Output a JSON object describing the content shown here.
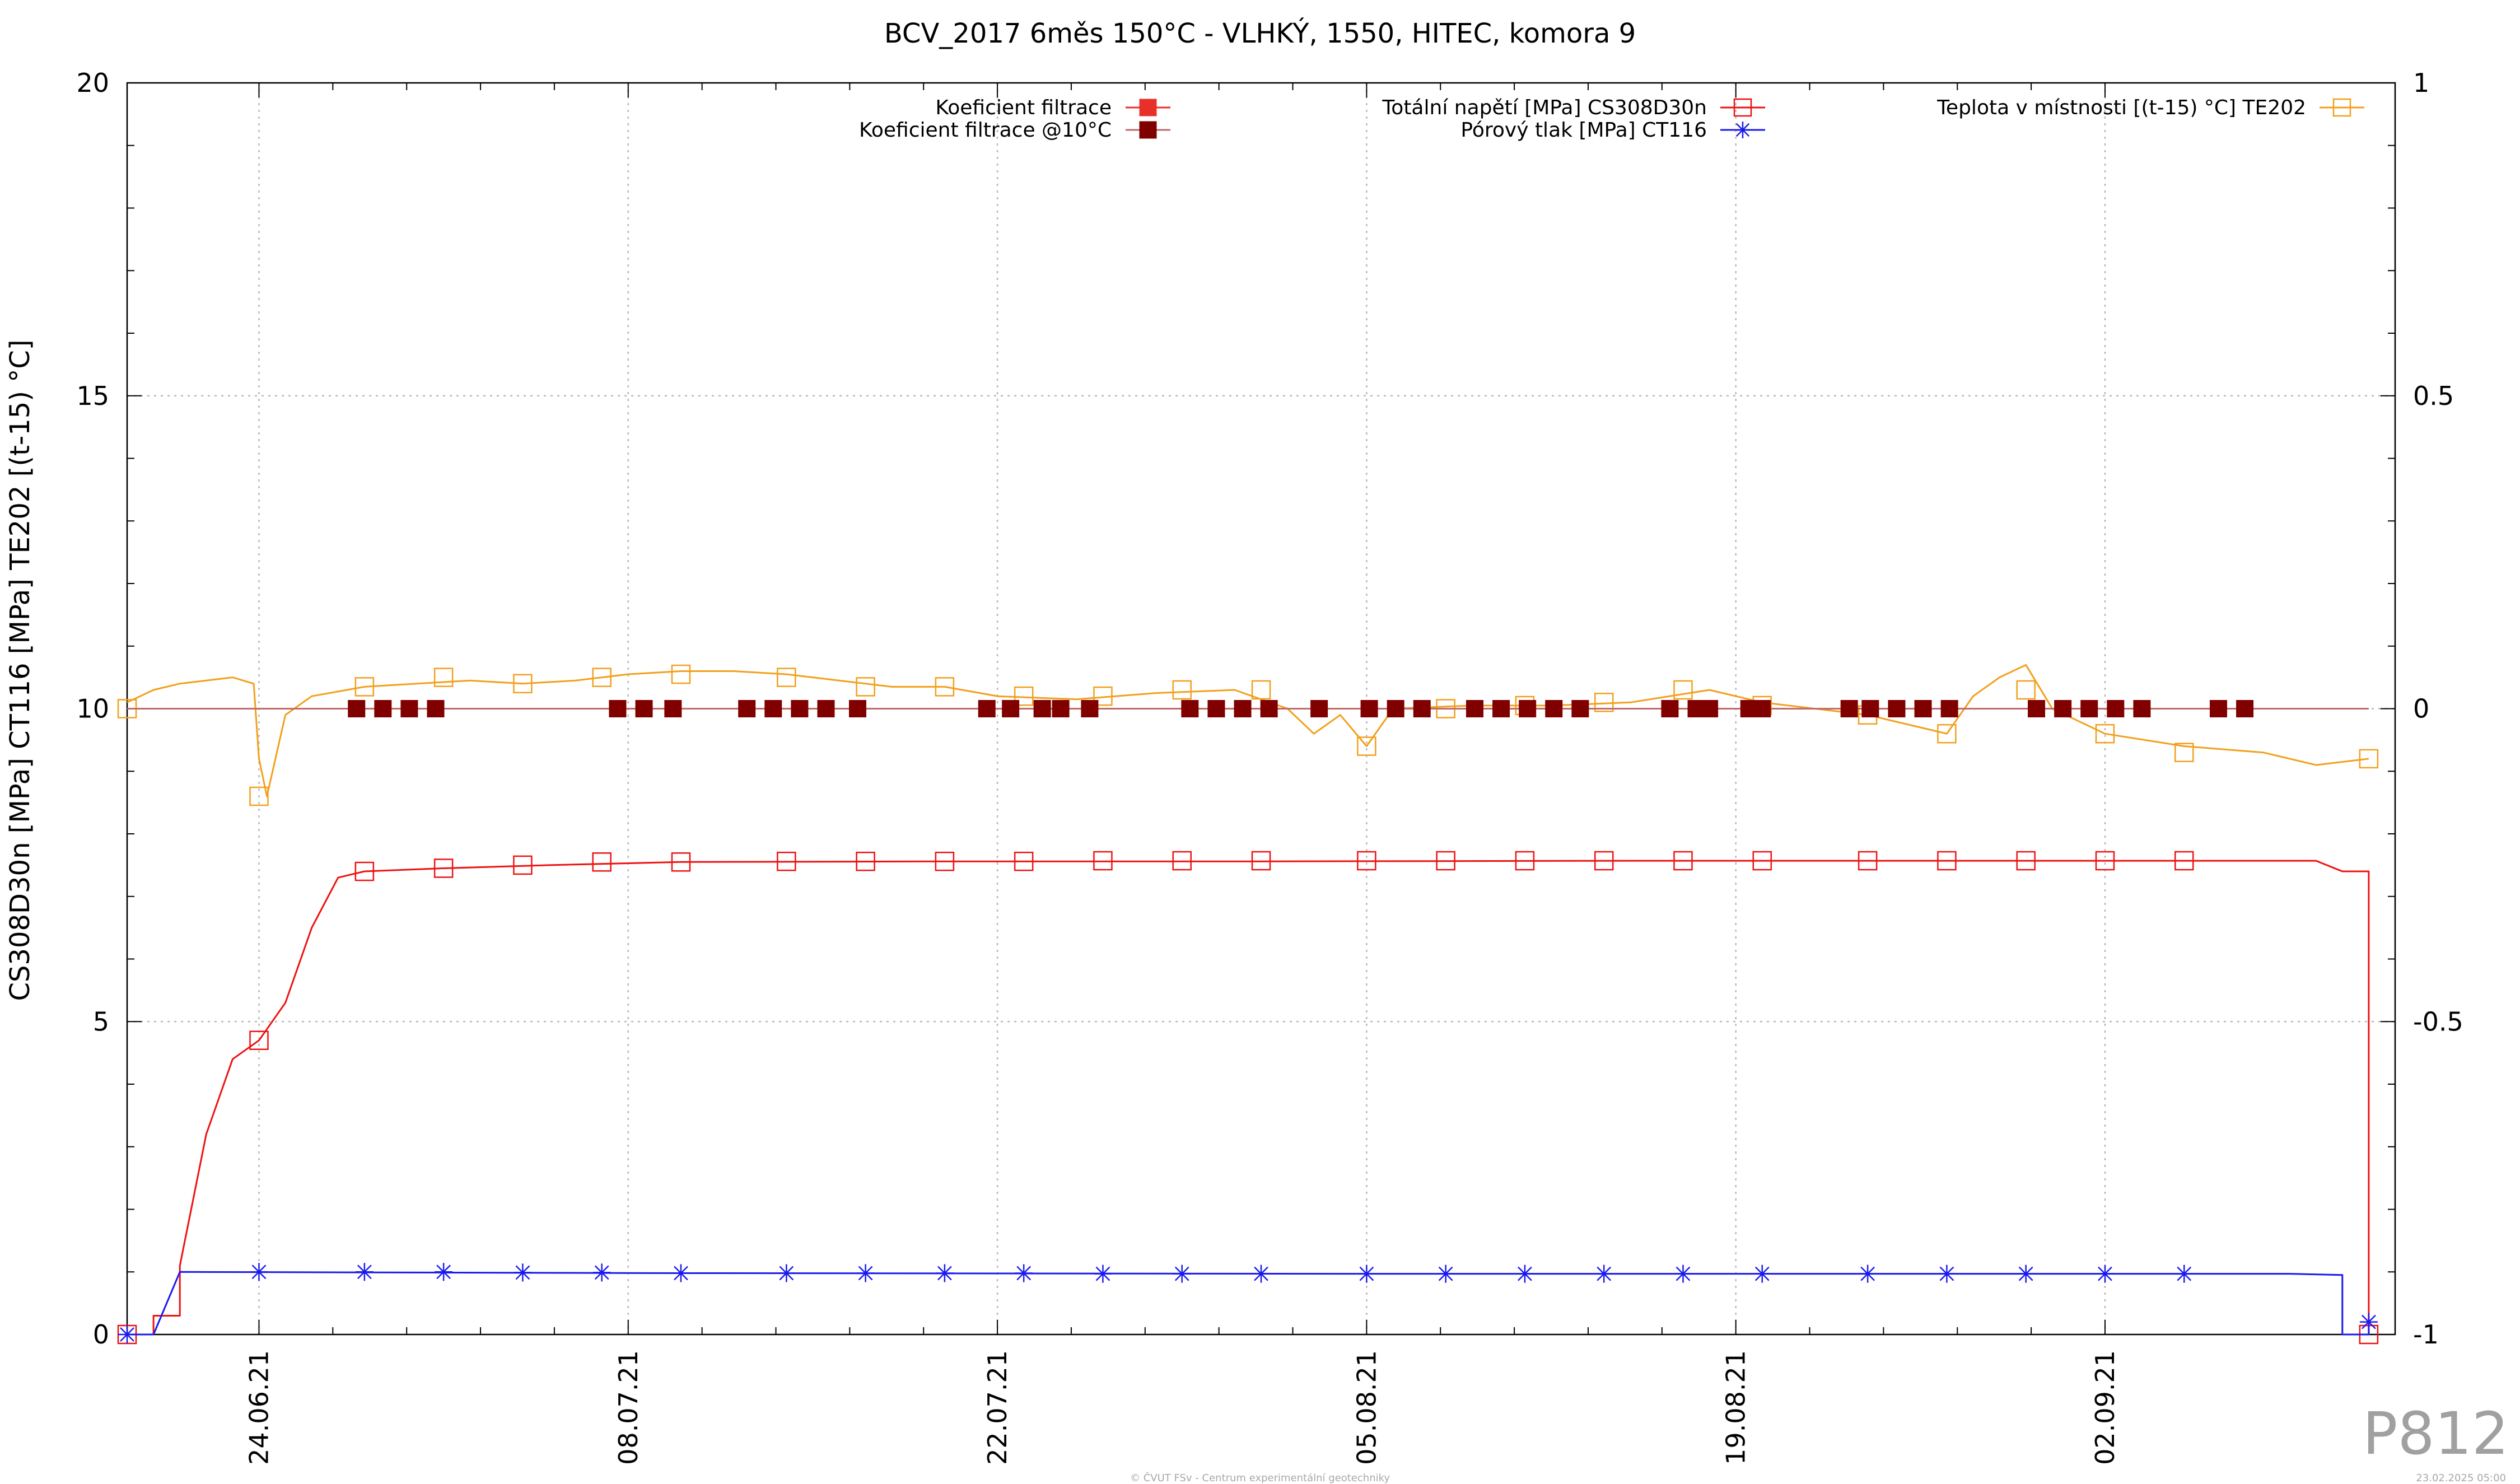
{
  "chart_data": {
    "type": "line",
    "title": "BCV_2017 6měs 150°C - VLHKÝ, 1550, HITEC, komora 9",
    "ylabel": "CS308D30n [MPa] CT116 [MPa] TE202 [(t-15) °C]",
    "ylim": [
      0,
      20
    ],
    "yticks": [
      "0",
      "5",
      "10",
      "15",
      "20"
    ],
    "y2lim": [
      -1,
      1
    ],
    "y2ticks": [
      "-1",
      "-0.5",
      "0",
      "0.5",
      "1"
    ],
    "xlim": [
      "2021-06-19",
      "2021-09-13"
    ],
    "xticks": [
      {
        "date": "2021-06-24",
        "label": "24.06.21"
      },
      {
        "date": "2021-07-08",
        "label": "08.07.21"
      },
      {
        "date": "2021-07-22",
        "label": "22.07.21"
      },
      {
        "date": "2021-08-05",
        "label": "05.08.21"
      },
      {
        "date": "2021-08-19",
        "label": "19.08.21"
      },
      {
        "date": "2021-09-02",
        "label": "02.09.21"
      }
    ],
    "grid": true,
    "legend": [
      {
        "name": "Koeficient filtrace",
        "color": "#e8302a",
        "marker": "filled-square"
      },
      {
        "name": "Koeficient filtrace @10°C",
        "color": "#800000",
        "marker": "filled-square"
      },
      {
        "name": "Totální napětí [MPa] CS308D30n",
        "color": "#ee1111",
        "marker": "open-square"
      },
      {
        "name": "Pórový tlak [MPa] CT116",
        "color": "#1a1aee",
        "marker": "star"
      },
      {
        "name": "Teplota v místnosti [(t-15) °C] TE202",
        "color": "#f2a01c",
        "marker": "open-square"
      }
    ],
    "series": [
      {
        "name": "Totální napětí [MPa] CS308D30n",
        "axis": "y1",
        "color": "#ee1111",
        "marker": "open-square",
        "points": [
          [
            "2021-06-20",
            0.0
          ],
          [
            "2021-06-20",
            0.3
          ],
          [
            "2021-06-21",
            0.3
          ],
          [
            "2021-06-21",
            1.1
          ],
          [
            "2021-06-22",
            3.2
          ],
          [
            "2021-06-23",
            4.4
          ],
          [
            "2021-06-24",
            4.7
          ],
          [
            "2021-06-25",
            5.3
          ],
          [
            "2021-06-26",
            6.5
          ],
          [
            "2021-06-27",
            7.3
          ],
          [
            "2021-06-28",
            7.4
          ],
          [
            "2021-07-01",
            7.45
          ],
          [
            "2021-07-05",
            7.5
          ],
          [
            "2021-07-10",
            7.55
          ],
          [
            "2021-07-20",
            7.56
          ],
          [
            "2021-08-01",
            7.56
          ],
          [
            "2021-08-15",
            7.57
          ],
          [
            "2021-08-31",
            7.57
          ],
          [
            "2021-09-10",
            7.57
          ],
          [
            "2021-09-11",
            7.4
          ],
          [
            "2021-09-12",
            7.4
          ],
          [
            "2021-09-12",
            0.0
          ]
        ],
        "marker_points": [
          [
            "2021-06-19",
            0.0
          ],
          [
            "2021-06-24",
            4.7
          ],
          [
            "2021-06-28",
            7.4
          ],
          [
            "2021-07-01",
            7.45
          ],
          [
            "2021-07-04",
            7.5
          ],
          [
            "2021-07-07",
            7.55
          ],
          [
            "2021-07-10",
            7.55
          ],
          [
            "2021-07-14",
            7.56
          ],
          [
            "2021-07-17",
            7.56
          ],
          [
            "2021-07-20",
            7.56
          ],
          [
            "2021-07-23",
            7.56
          ],
          [
            "2021-07-26",
            7.57
          ],
          [
            "2021-07-29",
            7.57
          ],
          [
            "2021-08-01",
            7.57
          ],
          [
            "2021-08-05",
            7.57
          ],
          [
            "2021-08-08",
            7.57
          ],
          [
            "2021-08-11",
            7.57
          ],
          [
            "2021-08-14",
            7.57
          ],
          [
            "2021-08-17",
            7.57
          ],
          [
            "2021-08-20",
            7.57
          ],
          [
            "2021-08-24",
            7.57
          ],
          [
            "2021-08-27",
            7.57
          ],
          [
            "2021-08-30",
            7.57
          ],
          [
            "2021-09-02",
            7.57
          ],
          [
            "2021-09-05",
            7.57
          ],
          [
            "2021-09-12",
            0.0
          ]
        ]
      },
      {
        "name": "Pórový tlak [MPa] CT116",
        "axis": "y1",
        "color": "#1a1aee",
        "marker": "star",
        "points": [
          [
            "2021-06-19",
            0.0
          ],
          [
            "2021-06-20",
            0.0
          ],
          [
            "2021-06-21",
            1.0
          ],
          [
            "2021-07-10",
            0.98
          ],
          [
            "2021-08-05",
            0.97
          ],
          [
            "2021-09-09",
            0.97
          ],
          [
            "2021-09-11",
            0.95
          ],
          [
            "2021-09-11",
            0.0
          ],
          [
            "2021-09-12",
            0.0
          ],
          [
            "2021-09-12",
            0.2
          ]
        ],
        "marker_points": [
          [
            "2021-06-19",
            0.0
          ],
          [
            "2021-06-24",
            1.0
          ],
          [
            "2021-06-28",
            1.0
          ],
          [
            "2021-07-01",
            1.0
          ],
          [
            "2021-07-04",
            0.99
          ],
          [
            "2021-07-07",
            0.99
          ],
          [
            "2021-07-10",
            0.98
          ],
          [
            "2021-07-14",
            0.98
          ],
          [
            "2021-07-17",
            0.98
          ],
          [
            "2021-07-20",
            0.98
          ],
          [
            "2021-07-23",
            0.98
          ],
          [
            "2021-07-26",
            0.97
          ],
          [
            "2021-07-29",
            0.97
          ],
          [
            "2021-08-01",
            0.97
          ],
          [
            "2021-08-05",
            0.97
          ],
          [
            "2021-08-08",
            0.97
          ],
          [
            "2021-08-11",
            0.97
          ],
          [
            "2021-08-14",
            0.97
          ],
          [
            "2021-08-17",
            0.97
          ],
          [
            "2021-08-20",
            0.97
          ],
          [
            "2021-08-24",
            0.97
          ],
          [
            "2021-08-27",
            0.97
          ],
          [
            "2021-08-30",
            0.97
          ],
          [
            "2021-09-02",
            0.97
          ],
          [
            "2021-09-05",
            0.97
          ],
          [
            "2021-09-12",
            0.2
          ]
        ]
      },
      {
        "name": "Teplota v místnosti [(t-15) °C] TE202",
        "axis": "y1",
        "color": "#f2a01c",
        "marker": "open-square",
        "points": [
          [
            "2021-06-19",
            10.1
          ],
          [
            "2021-06-20",
            10.3
          ],
          [
            "2021-06-21",
            10.4
          ],
          [
            "2021-06-22",
            10.45
          ],
          [
            "2021-06-23",
            10.5
          ],
          [
            "2021-06-23.8",
            10.4
          ],
          [
            "2021-06-24",
            9.2
          ],
          [
            "2021-06-24.3",
            8.6
          ],
          [
            "2021-06-25",
            9.9
          ],
          [
            "2021-06-26",
            10.2
          ],
          [
            "2021-06-28",
            10.35
          ],
          [
            "2021-06-30",
            10.4
          ],
          [
            "2021-07-02",
            10.45
          ],
          [
            "2021-07-04",
            10.4
          ],
          [
            "2021-07-06",
            10.45
          ],
          [
            "2021-07-08",
            10.55
          ],
          [
            "2021-07-10",
            10.6
          ],
          [
            "2021-07-12",
            10.6
          ],
          [
            "2021-07-14",
            10.55
          ],
          [
            "2021-07-16",
            10.45
          ],
          [
            "2021-07-18",
            10.35
          ],
          [
            "2021-07-20",
            10.35
          ],
          [
            "2021-07-22",
            10.2
          ],
          [
            "2021-07-25",
            10.15
          ],
          [
            "2021-07-28",
            10.25
          ],
          [
            "2021-07-31",
            10.3
          ],
          [
            "2021-08-02",
            10.0
          ],
          [
            "2021-08-03",
            9.6
          ],
          [
            "2021-08-04",
            9.9
          ],
          [
            "2021-08-05",
            9.4
          ],
          [
            "2021-08-06",
            10.0
          ],
          [
            "2021-08-09",
            10.05
          ],
          [
            "2021-08-12",
            10.05
          ],
          [
            "2021-08-15",
            10.1
          ],
          [
            "2021-08-18",
            10.3
          ],
          [
            "2021-08-20",
            10.1
          ],
          [
            "2021-08-22",
            10.0
          ],
          [
            "2021-08-24",
            9.9
          ],
          [
            "2021-08-26",
            9.7
          ],
          [
            "2021-08-27",
            9.6
          ],
          [
            "2021-08-28",
            10.2
          ],
          [
            "2021-08-29",
            10.5
          ],
          [
            "2021-08-30",
            10.7
          ],
          [
            "2021-08-31",
            10.0
          ],
          [
            "2021-09-01",
            9.8
          ],
          [
            "2021-09-02",
            9.6
          ],
          [
            "2021-09-05",
            9.4
          ],
          [
            "2021-09-08",
            9.3
          ],
          [
            "2021-09-10",
            9.1
          ],
          [
            "2021-09-12",
            9.2
          ]
        ],
        "marker_points": [
          [
            "2021-06-19",
            10.0
          ],
          [
            "2021-06-24",
            8.6
          ],
          [
            "2021-06-28",
            10.35
          ],
          [
            "2021-07-01",
            10.5
          ],
          [
            "2021-07-04",
            10.4
          ],
          [
            "2021-07-07",
            10.5
          ],
          [
            "2021-07-10",
            10.55
          ],
          [
            "2021-07-14",
            10.5
          ],
          [
            "2021-07-17",
            10.35
          ],
          [
            "2021-07-20",
            10.35
          ],
          [
            "2021-07-23",
            10.2
          ],
          [
            "2021-07-26",
            10.2
          ],
          [
            "2021-07-29",
            10.3
          ],
          [
            "2021-08-01",
            10.3
          ],
          [
            "2021-08-05",
            9.4
          ],
          [
            "2021-08-08",
            10.0
          ],
          [
            "2021-08-11",
            10.05
          ],
          [
            "2021-08-14",
            10.1
          ],
          [
            "2021-08-17",
            10.3
          ],
          [
            "2021-08-20",
            10.05
          ],
          [
            "2021-08-24",
            9.9
          ],
          [
            "2021-08-27",
            9.6
          ],
          [
            "2021-08-30",
            10.3
          ],
          [
            "2021-09-02",
            9.6
          ],
          [
            "2021-09-05",
            9.3
          ],
          [
            "2021-09-12",
            9.2
          ]
        ]
      },
      {
        "name": "Koeficient filtrace @10°C",
        "axis": "y1",
        "color": "#800000",
        "marker": "filled-square",
        "line_color": "#c06a6a",
        "points": [
          [
            "2021-06-19",
            10.0
          ],
          [
            "2021-09-12",
            10.0
          ]
        ],
        "marker_points": [
          [
            "2021-06-27.7",
            10.0
          ],
          [
            "2021-06-28.7",
            10.0
          ],
          [
            "2021-06-29.7",
            10.0
          ],
          [
            "2021-06-30.7",
            10.0
          ],
          [
            "2021-07-07.6",
            10.0
          ],
          [
            "2021-07-08.6",
            10.0
          ],
          [
            "2021-07-09.7",
            10.0
          ],
          [
            "2021-07-12.5",
            10.0
          ],
          [
            "2021-07-13.5",
            10.0
          ],
          [
            "2021-07-14.5",
            10.0
          ],
          [
            "2021-07-15.5",
            10.0
          ],
          [
            "2021-07-16.7",
            10.0
          ],
          [
            "2021-07-21.6",
            10.0
          ],
          [
            "2021-07-22.5",
            10.0
          ],
          [
            "2021-07-23.7",
            10.0
          ],
          [
            "2021-07-24.4",
            10.0
          ],
          [
            "2021-07-25.5",
            10.0
          ],
          [
            "2021-07-29.3",
            10.0
          ],
          [
            "2021-07-30.3",
            10.0
          ],
          [
            "2021-07-31.3",
            10.0
          ],
          [
            "2021-08-01.3",
            10.0
          ],
          [
            "2021-08-03.2",
            10.0
          ],
          [
            "2021-08-05.1",
            10.0
          ],
          [
            "2021-08-06.1",
            10.0
          ],
          [
            "2021-08-07.1",
            10.0
          ],
          [
            "2021-08-09.1",
            10.0
          ],
          [
            "2021-08-10.1",
            10.0
          ],
          [
            "2021-08-11.1",
            10.0
          ],
          [
            "2021-08-12.1",
            10.0
          ],
          [
            "2021-08-13.1",
            10.0
          ],
          [
            "2021-08-16.5",
            10.0
          ],
          [
            "2021-08-17.5",
            10.0
          ],
          [
            "2021-08-18.0",
            10.0
          ],
          [
            "2021-08-19.5",
            10.0
          ],
          [
            "2021-08-20.0",
            10.0
          ],
          [
            "2021-08-23.3",
            10.0
          ],
          [
            "2021-08-24.1",
            10.0
          ],
          [
            "2021-08-25.1",
            10.0
          ],
          [
            "2021-08-26.1",
            10.0
          ],
          [
            "2021-08-27.1",
            10.0
          ],
          [
            "2021-08-30.4",
            10.0
          ],
          [
            "2021-08-31.4",
            10.0
          ],
          [
            "2021-09-01.4",
            10.0
          ],
          [
            "2021-09-02.4",
            10.0
          ],
          [
            "2021-09-03.4",
            10.0
          ],
          [
            "2021-09-06.3",
            10.0
          ],
          [
            "2021-09-07.3",
            10.0
          ]
        ]
      }
    ]
  },
  "footer": {
    "copyright": "© ČVUT FSv - Centrum experimentální geotechniky",
    "timestamp": "23.02.2025 05:00",
    "code": "P812"
  }
}
